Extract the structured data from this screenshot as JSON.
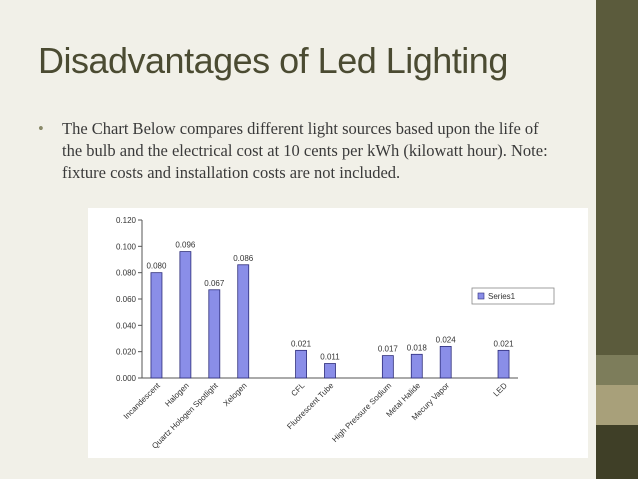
{
  "slide": {
    "title": "Disadvantages of Led Lighting",
    "bullet_text": "The Chart Below compares different light sources based upon the life of the bulb and the electrical cost at 10 cents per kWh (kilowatt hour). Note: fixture costs and installation costs are not included."
  },
  "colors": {
    "background": "#f1f0e8",
    "title": "#4b4b32",
    "bar_fill": "#8a8ee8",
    "bar_stroke": "#2c2c7a",
    "sidebar": [
      "#5b5b3c",
      "#7d7d5b",
      "#a8a07a",
      "#3f3f27"
    ]
  },
  "chart_data": {
    "type": "bar",
    "categories": [
      "Incandescent",
      "Halogen",
      "Quartz Hologen Spotlight",
      "Xelogen",
      "",
      "CFL",
      "Fluorescent Tube",
      "",
      "High Pressure Sodium",
      "Metal Halide",
      "Mecury Vapor",
      "",
      "LED"
    ],
    "series": [
      {
        "name": "Series1",
        "values": [
          0.08,
          0.096,
          0.067,
          0.086,
          null,
          0.021,
          0.011,
          null,
          0.017,
          0.018,
          0.024,
          null,
          0.021
        ]
      }
    ],
    "data_labels": [
      "0.080",
      "0.096",
      "0.067",
      "0.086",
      "",
      "0.021",
      "0.011",
      "",
      "0.017",
      "0.018",
      "0.024",
      "",
      "0.021"
    ],
    "yticks": [
      "0.000",
      "0.020",
      "0.040",
      "0.060",
      "0.080",
      "0.100",
      "0.120"
    ],
    "ylim": [
      0,
      0.12
    ],
    "legend_label": "Series1",
    "legend_position": "right",
    "grid": false
  }
}
